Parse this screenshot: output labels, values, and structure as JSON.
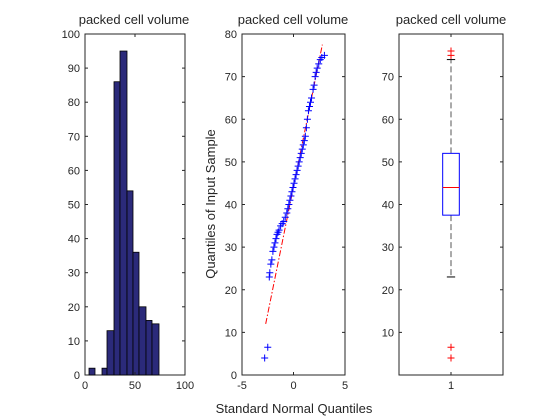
{
  "chart_data": [
    {
      "type": "histogram",
      "title": "packed cell volume",
      "xlabel": "",
      "ylabel": "",
      "xlim": [
        0,
        100
      ],
      "ylim": [
        0,
        100
      ],
      "xticks": [
        "0",
        "50",
        "100"
      ],
      "yticks": [
        "0",
        "10",
        "20",
        "30",
        "40",
        "50",
        "60",
        "70",
        "80",
        "90",
        "100"
      ],
      "bin_edges": [
        4,
        10,
        17,
        22,
        29,
        35,
        42,
        48,
        54,
        61,
        67,
        74
      ],
      "counts": [
        2,
        0,
        2,
        13,
        86,
        95,
        54,
        36,
        20,
        16,
        15
      ],
      "bar_color": "#2b2a7a",
      "edge_color": "#000000"
    },
    {
      "type": "scatter",
      "subtype": "normal-probability-plot",
      "title": "packed cell volume",
      "xlabel": "Standard Normal Quantiles",
      "ylabel": "Quantiles of Input Sample",
      "xlim": [
        -5,
        5
      ],
      "ylim": [
        0,
        80
      ],
      "xticks": [
        "-5",
        "0",
        "5"
      ],
      "yticks": [
        "0",
        "10",
        "20",
        "30",
        "40",
        "50",
        "60",
        "70",
        "80"
      ],
      "points": [
        [
          -2.8,
          4
        ],
        [
          -2.5,
          6.5
        ],
        [
          -2.35,
          23
        ],
        [
          -2.3,
          24
        ],
        [
          -2.2,
          26
        ],
        [
          -2.1,
          27
        ],
        [
          -2.0,
          29
        ],
        [
          -1.9,
          30
        ],
        [
          -1.8,
          31
        ],
        [
          -1.7,
          32
        ],
        [
          -1.6,
          33
        ],
        [
          -1.5,
          33.5
        ],
        [
          -1.4,
          34
        ],
        [
          -1.25,
          35
        ],
        [
          -1.1,
          35.5
        ],
        [
          -0.95,
          36
        ],
        [
          -0.8,
          37
        ],
        [
          -0.65,
          38
        ],
        [
          -0.55,
          39
        ],
        [
          -0.45,
          40
        ],
        [
          -0.35,
          41
        ],
        [
          -0.25,
          42
        ],
        [
          -0.15,
          43
        ],
        [
          -0.05,
          44
        ],
        [
          0.05,
          45
        ],
        [
          0.15,
          46
        ],
        [
          0.25,
          47
        ],
        [
          0.35,
          48
        ],
        [
          0.45,
          49
        ],
        [
          0.55,
          50
        ],
        [
          0.65,
          51
        ],
        [
          0.75,
          52
        ],
        [
          0.85,
          53
        ],
        [
          0.95,
          54
        ],
        [
          1.05,
          55
        ],
        [
          1.15,
          56
        ],
        [
          1.25,
          58
        ],
        [
          1.35,
          60
        ],
        [
          1.45,
          62
        ],
        [
          1.55,
          63
        ],
        [
          1.65,
          64
        ],
        [
          1.75,
          65
        ],
        [
          1.9,
          67
        ],
        [
          2.0,
          68
        ],
        [
          2.1,
          70
        ],
        [
          2.2,
          71
        ],
        [
          2.3,
          72
        ],
        [
          2.45,
          73
        ],
        [
          2.6,
          74
        ],
        [
          2.75,
          74.5
        ],
        [
          3.0,
          75
        ]
      ],
      "reference_line": {
        "x": [
          -2.7,
          2.8
        ],
        "y": [
          12,
          77.5
        ],
        "style": "dash-dot"
      },
      "marker_color": "#0000ff",
      "line_color": "#ff0000"
    },
    {
      "type": "boxplot",
      "title": "packed cell volume",
      "xlabel": "",
      "ylabel": "",
      "ylim": [
        0,
        80
      ],
      "xticks": [
        "1"
      ],
      "yticks": [
        "10",
        "20",
        "30",
        "40",
        "50",
        "60",
        "70"
      ],
      "box": {
        "q1": 37.5,
        "median": 44,
        "q3": 52,
        "whisker_low": 23,
        "whisker_high": 74
      },
      "outliers": [
        75,
        76,
        6.5,
        4
      ],
      "box_color": "#0000ff",
      "median_color": "#ff0000",
      "whisker_color": "#555555",
      "outlier_color": "#ff0000"
    }
  ]
}
